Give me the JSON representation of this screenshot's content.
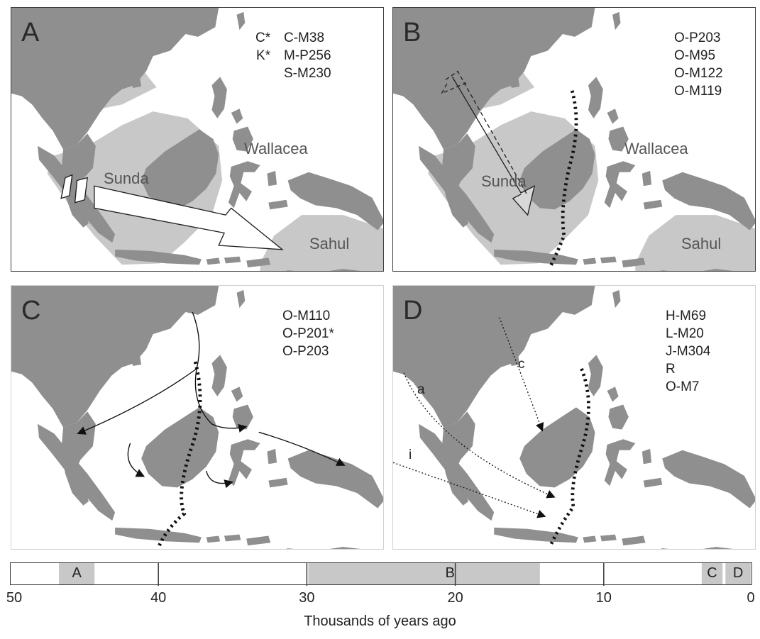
{
  "panels": {
    "a": {
      "label": "A",
      "markers_left": [
        "C*",
        "K*"
      ],
      "markers_right": [
        "C-M38",
        "M-P256",
        "S-M230"
      ],
      "regions": {
        "sunda": "Sunda",
        "wallacea": "Wallacea",
        "sahul": "Sahul"
      }
    },
    "b": {
      "label": "B",
      "markers": [
        "O-P203",
        "O-M95",
        "O-M122",
        "O-M119"
      ],
      "regions": {
        "sunda": "Sunda",
        "wallacea": "Wallacea",
        "sahul": "Sahul"
      }
    },
    "c": {
      "label": "C",
      "markers": [
        "O-M110",
        "O-P201*",
        "O-P203"
      ]
    },
    "d": {
      "label": "D",
      "markers": [
        "H-M69",
        "L-M20",
        "J-M304",
        "R",
        "O-M7"
      ],
      "route_labels": {
        "a": "a",
        "c": "c",
        "i": "i"
      }
    }
  },
  "timeline": {
    "ticks": [
      "50",
      "40",
      "30",
      "20",
      "10",
      "0"
    ],
    "segments": [
      {
        "label": "A",
        "from": 46.7,
        "to": 44.3
      },
      {
        "label": "B",
        "from": 29.9,
        "to": 14.3
      },
      {
        "label": "C",
        "from": 3.4,
        "to": 2.0
      },
      {
        "label": "D",
        "from": 1.8,
        "to": 0.1
      }
    ],
    "axis_label": "Thousands of years ago",
    "range": [
      50,
      0
    ],
    "shade_color": "#c8c8c8"
  },
  "colors": {
    "land": "#8f8f8f",
    "shelf": "#c8c8c8",
    "line": "#222222"
  }
}
